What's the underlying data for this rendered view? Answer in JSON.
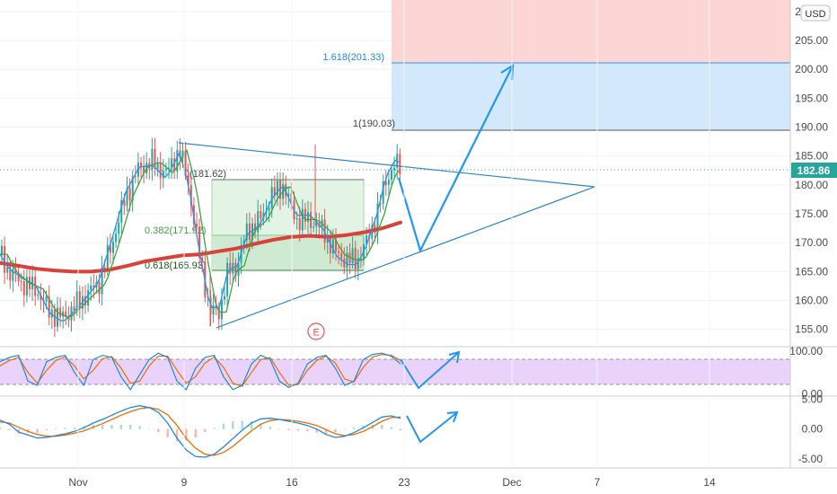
{
  "currency_button": "USD",
  "chart_data": [
    {
      "id": "price",
      "type": "candlestick",
      "title": "",
      "ylim": [
        152,
        212
      ],
      "y_ticks": [
        155,
        160,
        165,
        170,
        175,
        180,
        185,
        190,
        195,
        200,
        205,
        210
      ],
      "y_tick_labels": [
        "155.00",
        "160.00",
        "165.00",
        "170.00",
        "175.00",
        "180.00",
        "185.00",
        "190.00",
        "195.00",
        "200.00",
        "205.00",
        "210.00"
      ],
      "x_tick_labels": [
        "Nov",
        "9",
        "16",
        "23",
        "Dec",
        "7",
        "14"
      ],
      "last_price": 182.86,
      "last_price_label": "182.86",
      "moving_average_long": [
        166.5,
        166.0,
        165.5,
        165.2,
        165.0,
        165.0,
        165.3,
        166.0,
        166.8,
        167.3,
        167.8,
        168.0,
        168.5,
        169.0,
        169.8,
        170.5,
        171.0,
        171.2,
        171.0,
        171.3,
        171.8,
        172.5,
        173.5
      ],
      "fibonacci": [
        {
          "ratio": "1.618",
          "price": 201.33,
          "label": "1.618(201.33)"
        },
        {
          "ratio": "1",
          "price": 190.03,
          "label": "1(190.03)"
        },
        {
          "ratio": "0",
          "price": 181.62,
          "label": "0(181.62)"
        },
        {
          "ratio": "0.382",
          "price": 171.92,
          "label": "0.382(171.92)"
        },
        {
          "ratio": "0.618",
          "price": 165.93,
          "label": "0.618(165.93)"
        }
      ],
      "target_zones": [
        {
          "name": "upper",
          "from": 201.33,
          "to": 212,
          "color": "#fcd5d5"
        },
        {
          "name": "target",
          "from": 190.03,
          "to": 201.33,
          "color": "#d3e8fb"
        }
      ],
      "triangle": {
        "upper_start": 188,
        "upper_end": 180.5,
        "lower_start": 156,
        "lower_end": 180.5
      },
      "projection": [
        183,
        170,
        201.5
      ],
      "event_marker": "E",
      "colors": {
        "up": "#26a69a",
        "down": "#ef5350",
        "ma": "#d8423a",
        "fast": "#2196f3",
        "slow": "#43a047",
        "projection": "#2196f3",
        "grid": "#eef0f3"
      }
    },
    {
      "id": "stochastic",
      "type": "line",
      "ylim": [
        -5,
        110
      ],
      "y_ticks": [
        0,
        100
      ],
      "y_tick_labels": [
        "0.00",
        "100.00"
      ],
      "band": [
        20,
        80
      ],
      "k": [
        75,
        85,
        90,
        30,
        20,
        75,
        85,
        90,
        50,
        20,
        80,
        90,
        85,
        40,
        10,
        45,
        80,
        95,
        85,
        30,
        10,
        60,
        85,
        90,
        40,
        10,
        20,
        70,
        90,
        80,
        30,
        15,
        25,
        70,
        85,
        90,
        60,
        20,
        30,
        80,
        92,
        95,
        88,
        70
      ],
      "d": [
        65,
        78,
        85,
        50,
        25,
        55,
        78,
        86,
        65,
        35,
        55,
        82,
        87,
        60,
        25,
        30,
        65,
        88,
        88,
        55,
        25,
        40,
        72,
        86,
        62,
        25,
        18,
        50,
        80,
        85,
        50,
        20,
        22,
        55,
        78,
        88,
        72,
        35,
        28,
        62,
        86,
        92,
        90,
        78
      ],
      "projection": [
        65,
        8,
        85
      ]
    },
    {
      "id": "macd",
      "type": "line",
      "ylim": [
        -6.5,
        5.5
      ],
      "y_ticks": [
        5,
        0,
        -5
      ],
      "y_tick_labels": [
        "5.00",
        "0.00",
        "-5.00"
      ],
      "macd": [
        1.5,
        0.8,
        -0.5,
        -1,
        -1.5,
        -1.4,
        -1.1,
        -0.8,
        -0.4,
        0.2,
        1.0,
        1.6,
        2.3,
        3.0,
        3.6,
        3.9,
        3.6,
        2.8,
        1.0,
        -1.5,
        -3.5,
        -4.6,
        -4.7,
        -4.2,
        -3.0,
        -1.6,
        -0.2,
        1.0,
        1.7,
        1.8,
        1.6,
        1.3,
        1.0,
        0.6,
        0.0,
        -0.9,
        -1.4,
        -1.2,
        -0.6,
        0.2,
        1.1,
        2.0,
        2.2,
        1.8
      ],
      "signal": [
        1.2,
        1.0,
        0.3,
        -0.4,
        -0.9,
        -1.2,
        -1.2,
        -1.0,
        -0.7,
        -0.3,
        0.3,
        0.9,
        1.6,
        2.3,
        2.9,
        3.4,
        3.6,
        3.3,
        2.4,
        0.6,
        -1.6,
        -3.2,
        -4.2,
        -4.4,
        -3.9,
        -2.9,
        -1.6,
        -0.3,
        0.8,
        1.4,
        1.6,
        1.5,
        1.3,
        1.0,
        0.6,
        -0.1,
        -0.8,
        -1.1,
        -0.9,
        -0.4,
        0.4,
        1.3,
        1.9,
        2.0
      ],
      "histogram": [
        0.3,
        -0.2,
        -0.8,
        -0.6,
        -0.6,
        -0.2,
        0.1,
        0.2,
        0.3,
        0.5,
        0.7,
        0.7,
        0.7,
        0.7,
        0.7,
        0.5,
        0.0,
        -0.5,
        -1.4,
        -2.1,
        -1.9,
        -1.4,
        -0.5,
        0.2,
        0.9,
        1.3,
        1.4,
        1.3,
        0.9,
        0.4,
        0.0,
        -0.2,
        -0.3,
        -0.4,
        -0.6,
        -0.8,
        -0.6,
        -0.1,
        0.3,
        0.6,
        0.7,
        0.7,
        0.3,
        -0.2
      ],
      "projection": [
        2.5,
        -1.8,
        3.2
      ]
    }
  ]
}
